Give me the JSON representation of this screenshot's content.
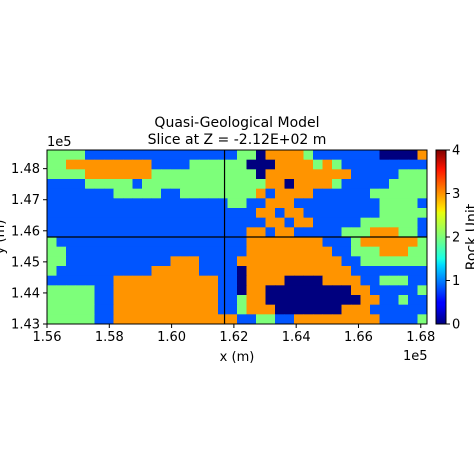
{
  "chart_data": {
    "type": "heatmap",
    "title": "Quasi-Geological Model",
    "subtitle": "Slice at Z = -2.12E+02 m",
    "xlabel": "x (m)",
    "ylabel": "y (m)",
    "x_offset_label": "1e5",
    "y_offset_label": "1e5",
    "xlim": [
      1.56,
      1.682
    ],
    "ylim": [
      1.43,
      1.486
    ],
    "x_ticks": [
      "1.56",
      "1.58",
      "1.60",
      "1.62",
      "1.64",
      "1.66",
      "1.68"
    ],
    "x_tick_values": [
      1.56,
      1.58,
      1.6,
      1.62,
      1.64,
      1.66,
      1.68
    ],
    "y_ticks": [
      "1.43",
      "1.44",
      "1.45",
      "1.46",
      "1.47",
      "1.48"
    ],
    "y_tick_values": [
      1.43,
      1.44,
      1.45,
      1.46,
      1.47,
      1.48
    ],
    "crosshair": {
      "x": 1.617,
      "y": 1.458
    },
    "colorbar": {
      "label": "Rock Unit",
      "range": [
        0,
        4
      ],
      "ticks": [
        "0",
        "1",
        "2",
        "3",
        "4"
      ],
      "colormap": "jet"
    },
    "grid_shape": [
      18,
      40
    ],
    "grid": [
      "2222111111111111111122033332111111100003",
      "2233333333311112222220003333232111111111",
      "2222333333322222222222033333333311111222",
      "1111222221222222222222233033332111112222",
      "1111111222221122222222313333111111222222",
      "1111111111111111111221133311111111122221",
      "1111111111111111111111331331111111122222",
      "1111111111111111111111133133111112222221",
      "1111111111111111111113313311111222333221",
      "2111111111111111111113333333311123333332",
      "2211111111111111111113333333331122233322",
      "2211111111111333111133333333333112222222",
      "2111111111133333111103333333333311111111",
      "1111111333333333331103333000033331122211",
      "2222211333333333331103300000000033111112",
      "2222211333333333331123300000000003311211",
      "2222211333333333331123330000000333111111",
      "2222211333333333333311221133333333311112"
    ]
  }
}
